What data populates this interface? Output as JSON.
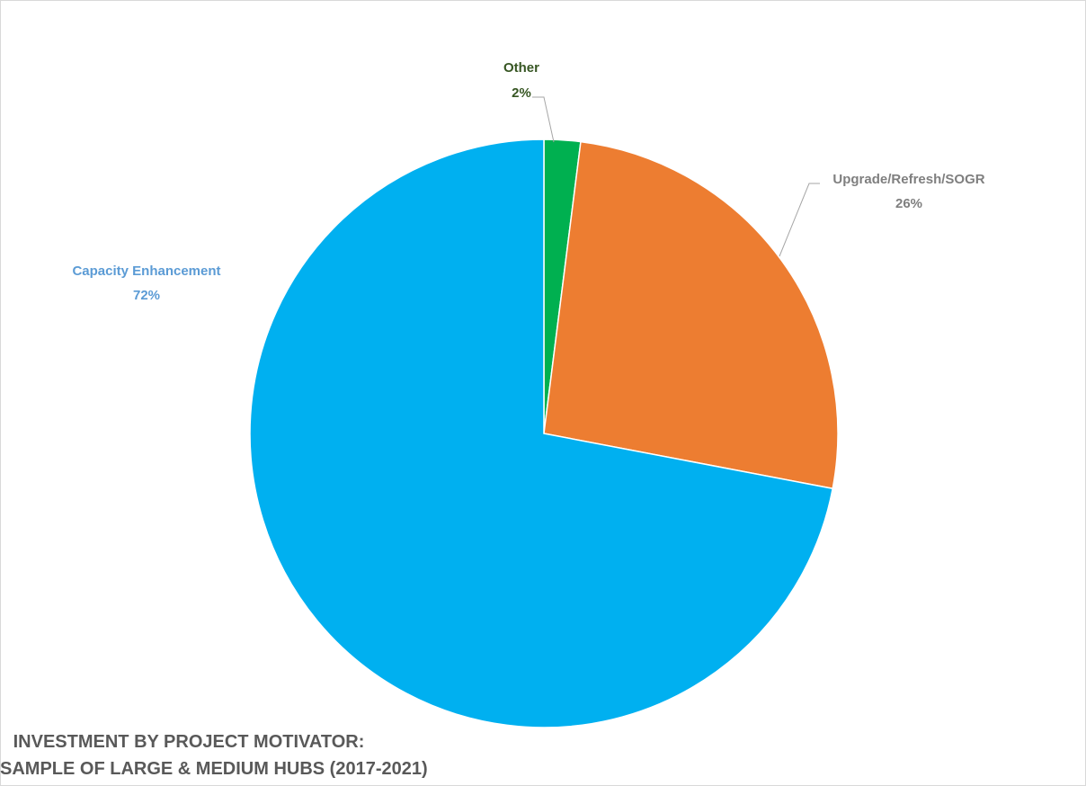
{
  "chart_data": {
    "type": "pie",
    "title_lines": [
      "INVESTMENT BY PROJECT MOTIVATOR:",
      "SAMPLE OF LARGE & MEDIUM HUBS (2017-2021)"
    ],
    "start_angle_deg": 0,
    "direction": "clockwise",
    "slices": [
      {
        "name": "Other",
        "value": 2,
        "label": "2%",
        "color": "#00B050",
        "label_color": "#375623"
      },
      {
        "name": "Upgrade/Refresh/SOGR",
        "value": 26,
        "label": "26%",
        "color": "#ED7D31",
        "label_color": "#7F7F7F"
      },
      {
        "name": "Capacity Enhancement",
        "value": 72,
        "label": "72%",
        "color": "#00B0F0",
        "label_color": "#5B9BD5"
      }
    ],
    "leader_line_color": "#A6A6A6"
  }
}
